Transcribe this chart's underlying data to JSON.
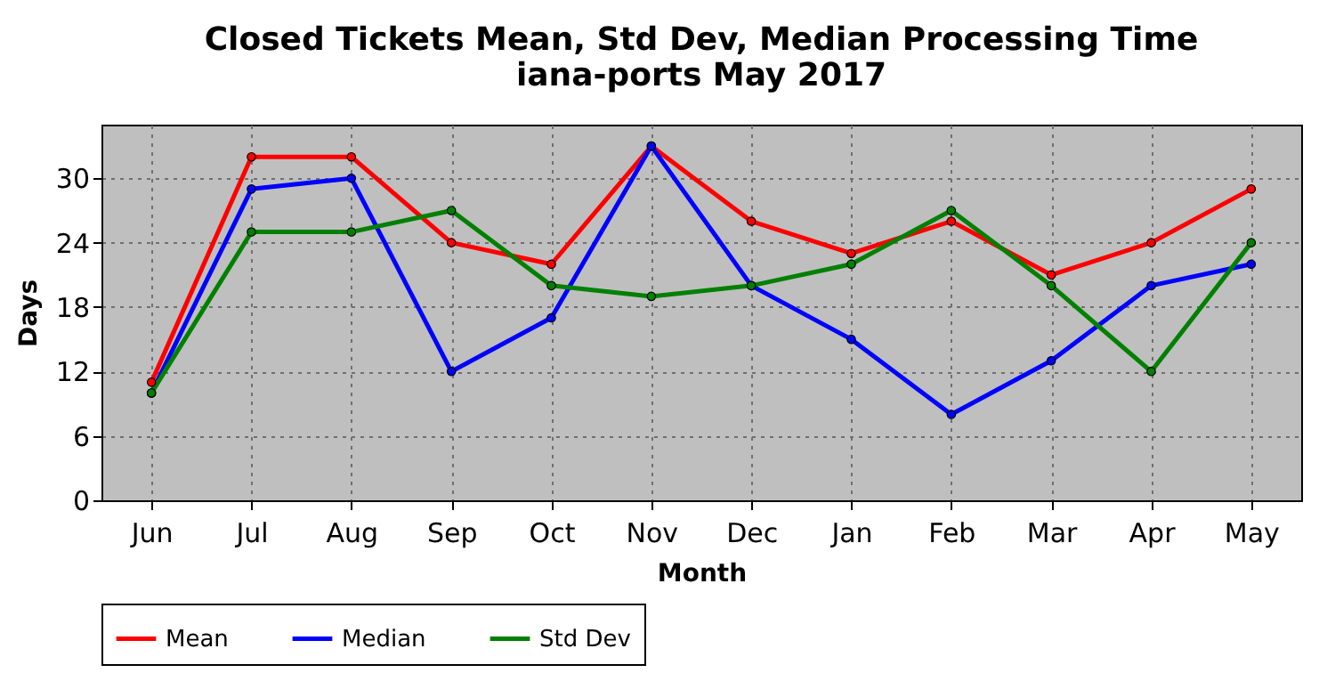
{
  "chart_data": {
    "type": "line",
    "title": "Closed Tickets Mean, Std Dev, Median Processing Time\niana-ports May 2017",
    "xlabel": "Month",
    "ylabel": "Days",
    "categories": [
      "Jun",
      "Jul",
      "Aug",
      "Sep",
      "Oct",
      "Nov",
      "Dec",
      "Jan",
      "Feb",
      "Mar",
      "Apr",
      "May"
    ],
    "series": [
      {
        "name": "Mean",
        "color": "#ff0000",
        "values": [
          11,
          32,
          32,
          24,
          22,
          33,
          26,
          23,
          26,
          21,
          24,
          29
        ]
      },
      {
        "name": "Median",
        "color": "#0000ff",
        "values": [
          10,
          29,
          30,
          12,
          17,
          33,
          20,
          15,
          8,
          13,
          20,
          22
        ]
      },
      {
        "name": "Std Dev",
        "color": "#008000",
        "values": [
          10,
          25,
          25,
          27,
          20,
          19,
          20,
          22,
          27,
          20,
          12,
          24
        ]
      }
    ],
    "ylim": [
      0,
      35
    ],
    "yticks": [
      0,
      6,
      12,
      18,
      24,
      30
    ],
    "grid": true,
    "legend": "bottom",
    "marker": "circle",
    "line_style": "solid"
  }
}
